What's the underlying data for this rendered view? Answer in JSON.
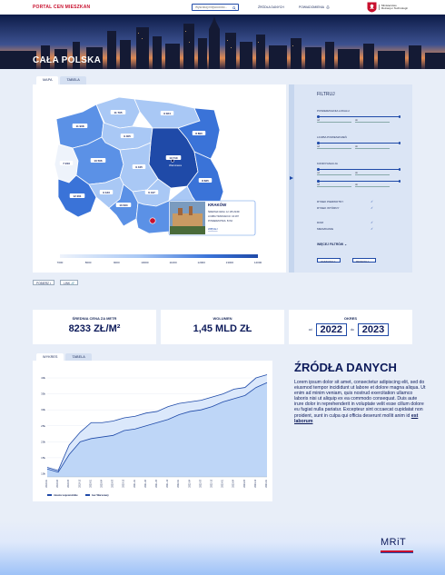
{
  "header": {
    "logo": "PORTAL CEN MIESZKAN",
    "search_placeholder": "Wyszukaj miejscowość...",
    "nav": [
      "ŹRÓDŁA DANYCH",
      "POWIADOMIENIA"
    ],
    "ministry_line1": "Ministerstwo",
    "ministry_line2": "Rozwoju i Technologii"
  },
  "hero": {
    "title": "CAŁA POLSKA"
  },
  "map_section": {
    "tabs": [
      "MAPA",
      "TABELA"
    ],
    "regions": [
      {
        "id": "zachodniopomorskie",
        "label": "11 908",
        "color": "#5b91e6"
      },
      {
        "id": "pomorskie",
        "label": "11 795",
        "color": "#a9c8f5"
      },
      {
        "id": "warminsko",
        "label": "9 024",
        "color": "#a9c8f5"
      },
      {
        "id": "podlaskie",
        "label": "8 890",
        "color": "#3a73d8"
      },
      {
        "id": "kujawsko",
        "label": "9 405",
        "color": "#a9c8f5"
      },
      {
        "id": "lubuskie",
        "label": "7 243",
        "color": "#eef3fb"
      },
      {
        "id": "wielkopolskie",
        "label": "10 506",
        "color": "#5b91e6"
      },
      {
        "id": "mazowieckie",
        "label": "13 710",
        "color": "#1f4aa8"
      },
      {
        "id": "lodzkie",
        "label": "9 445",
        "color": "#a9c8f5"
      },
      {
        "id": "lubelskie",
        "label": "8 835",
        "color": "#3a73d8"
      },
      {
        "id": "dolnoslaskie",
        "label": "12 201",
        "color": "#3a73d8"
      },
      {
        "id": "opolskie",
        "label": "9 133",
        "color": "#a9c8f5"
      },
      {
        "id": "slaskie",
        "label": "10 634",
        "color": "#5b91e6"
      },
      {
        "id": "swietokrzyskie",
        "label": "6 447",
        "color": "#a9c8f5"
      },
      {
        "id": "malopolskie",
        "label": "",
        "color": "#5b91e6"
      },
      {
        "id": "podkarpackie",
        "label": "",
        "color": "#a9c8f5"
      }
    ],
    "city_marker": "Warszawa",
    "popup": {
      "title": "KRAKÓW",
      "line1": "ŚREDNIA CENA: 12 135 ZŁ/M²",
      "line2": "LICZBA TRANSAKCJI: 16 287",
      "line3": "POWIERZCHNIA: 53 M²",
      "link": "WIĘCEJ"
    },
    "legend_ticks": [
      "7000",
      "8000",
      "9000",
      "10000",
      "11000",
      "12000",
      "13000",
      "14000"
    ],
    "buttons": [
      "POBIERZ",
      "LINK"
    ]
  },
  "filters": {
    "title": "FILTRUJ",
    "groups": [
      {
        "label": "POWIERZCHNIA LOKALU",
        "from": "od",
        "to": "do"
      },
      {
        "label": "LICZBA POMIESZCZEŃ",
        "from": "od",
        "to": "do"
      },
      {
        "label": "KONDYGNACJA",
        "from": "od",
        "to": "do",
        "extra_from": "od",
        "extra_to": "do"
      }
    ],
    "checks": [
      {
        "label": "RYNEK PIERWOTNY",
        "checked": true
      },
      {
        "label": "RYNEK WTÓRNY",
        "checked": true
      },
      {
        "label": "DOM",
        "checked": true
      },
      {
        "label": "MIESZKANIE",
        "checked": true
      }
    ],
    "more": "WIĘCEJ FILTRÓW",
    "apply": "ZASTOSUJ",
    "reset": "RESETUJ"
  },
  "stats": {
    "avg_label": "ŚREDNIA CENA ZA METR",
    "avg_value": "8233 ZŁ/M²",
    "volume_label": "WOLUMEN",
    "volume_value": "1,45 MLD ZŁ",
    "period_label": "OKRES",
    "from": "od",
    "from_value": "2022",
    "to": "do",
    "to_value": "2023"
  },
  "chart_section": {
    "tabs": [
      "WYKRES",
      "TABELA"
    ],
    "buttons": [
      "POBIERZ",
      "LINK"
    ]
  },
  "chart_data": {
    "type": "area",
    "title": "",
    "xlabel": "",
    "ylabel": "",
    "categories": [
      "2019-01",
      "2019-04",
      "2019-07",
      "2019-10",
      "2020-01",
      "2020-04",
      "2020-07",
      "2020-10",
      "2021-01",
      "2021-04",
      "2021-07",
      "2021-10",
      "2022-01",
      "2022-04",
      "2022-07",
      "2022-10",
      "2023-01",
      "2023-04",
      "2023-07",
      "2023-10",
      "2024-01"
    ],
    "y_ticks": [
      "10k",
      "15k",
      "20k",
      "25k",
      "30k",
      "35k",
      "40k"
    ],
    "ylim": [
      9,
      42
    ],
    "series": [
      {
        "name": "miasta wojewódzkie",
        "color": "#1f4aa8",
        "values": [
          12,
          11,
          19,
          23,
          26,
          26,
          26.5,
          27.5,
          28,
          29,
          29.5,
          31,
          32,
          32.5,
          33,
          34,
          35,
          36.5,
          37,
          40,
          41
        ]
      },
      {
        "name": "bez Warszawy",
        "color": "#9ec2f7",
        "values": [
          11.5,
          10.5,
          16,
          20,
          21,
          21.5,
          22,
          23.5,
          24,
          25,
          26,
          27,
          28.5,
          29.5,
          30,
          31,
          32.5,
          33.5,
          34.5,
          37,
          38.5
        ]
      }
    ]
  },
  "sources": {
    "title": "ŹRÓDŁA DANYCH",
    "text": "Lorem ipsum dolor sit amet, consectetur adipiscing elit, sed do eiusmod tempor incididunt ut labore et dolore magna aliqua. Ut enim ad minim veniam, quis nostrud exercitation ullamco laboris nisi ut aliquip ex ea commodo consequat. Duis aute irure dolor in reprehenderit in voluptate velit esse cillum dolore eu fugiat nulla pariatur. Excepteur sint occaecat cupidatat non proident, sunt in culpa qui officia deserunt mollit anim id",
    "link": "est laborum"
  },
  "footer": {
    "logo": "MRiT"
  }
}
